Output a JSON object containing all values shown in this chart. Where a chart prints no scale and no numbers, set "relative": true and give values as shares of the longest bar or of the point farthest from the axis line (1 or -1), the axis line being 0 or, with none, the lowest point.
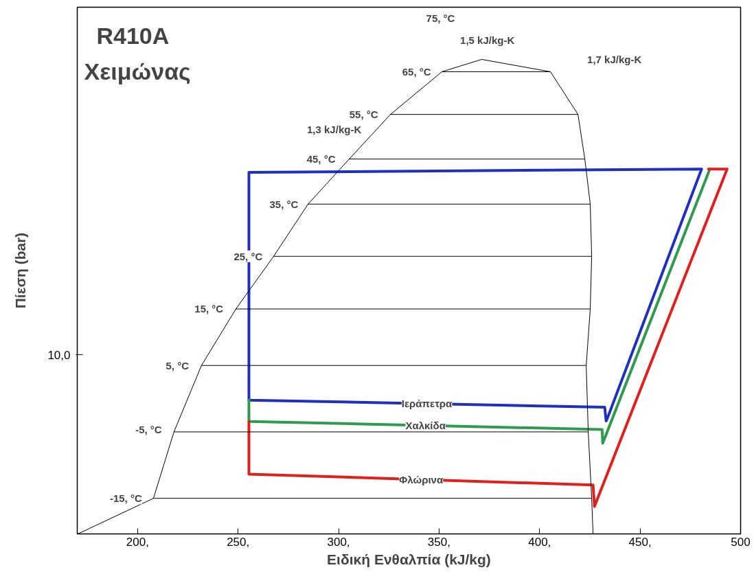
{
  "chart_data": {
    "type": "line",
    "title": "R410A",
    "subtitle": "Χειμώνας",
    "xlabel": "Ειδική Ενθαλπία (kJ/kg)",
    "ylabel": "Πίεση (bar)",
    "relative": true,
    "grid": false,
    "marker": "none",
    "line_style": "solid",
    "xlim": [
      170,
      500
    ],
    "xticks": [
      {
        "value": 200,
        "label": "200,"
      },
      {
        "value": 250,
        "label": "250,"
      },
      {
        "value": 300,
        "label": "300,"
      },
      {
        "value": 350,
        "label": "350,"
      },
      {
        "value": 400,
        "label": "400,"
      },
      {
        "value": 450,
        "label": "450,"
      },
      500
    ],
    "series": [
      {
        "name": "Ιεράπετρα",
        "color": "#1f2fbf",
        "x": [
          433.4,
          480.6,
          255.4,
          255.4,
          432.4,
          433.1
        ],
        "values": [
          0.24,
          0.769,
          0.762,
          0.282,
          0.267,
          0.238
        ]
      },
      {
        "name": "Χαλκίδα",
        "color": "#2e9b4f",
        "x": [
          255.4,
          255.4,
          431.1,
          431.4,
          484.7
        ],
        "values": [
          0.282,
          0.237,
          0.22,
          0.191,
          0.769
        ]
      },
      {
        "name": "Φλώρινα",
        "color": "#e0201c",
        "x": [
          255.4,
          255.4,
          426.6,
          427.3,
          493.3,
          484.0
        ],
        "values": [
          0.237,
          0.126,
          0.103,
          0.058,
          0.769,
          0.769
        ]
      },
      {
        "color": "#000000",
        "x": [
          170.3,
          207.9,
          218.1,
          231.8,
          248.9,
          267.7,
          284.8,
          305.3,
          325.8,
          351.4,
          371.2,
          405.4,
          419.1,
          422.5,
          425.2,
          425.9,
          425.2,
          423.2,
          424.2,
          425.9,
          426.6
        ],
        "values": [
          0,
          0.075,
          0.215,
          0.355,
          0.474,
          0.585,
          0.695,
          0.79,
          0.884,
          0.974,
          1.0,
          0.974,
          0.884,
          0.79,
          0.695,
          0.585,
          0.474,
          0.355,
          0.215,
          0.075,
          0
        ]
      },
      {
        "color": "#000000",
        "x": [
          207.9,
          425.9
        ],
        "values": [
          0.075,
          0.075
        ]
      },
      {
        "color": "#000000",
        "x": [
          218.1,
          424.2
        ],
        "values": [
          0.215,
          0.215
        ]
      },
      {
        "color": "#000000",
        "x": [
          231.8,
          423.2
        ],
        "values": [
          0.355,
          0.355
        ]
      },
      {
        "color": "#000000",
        "x": [
          248.9,
          425.2
        ],
        "values": [
          0.474,
          0.474
        ]
      },
      {
        "color": "#000000",
        "x": [
          267.7,
          425.9
        ],
        "values": [
          0.585,
          0.585
        ]
      },
      {
        "color": "#000000",
        "x": [
          284.8,
          425.2
        ],
        "values": [
          0.695,
          0.695
        ]
      },
      {
        "color": "#000000",
        "x": [
          305.3,
          422.5
        ],
        "values": [
          0.79,
          0.79
        ]
      },
      {
        "color": "#000000",
        "x": [
          325.8,
          419.1
        ],
        "values": [
          0.884,
          0.884
        ]
      },
      {
        "color": "#000000",
        "x": [
          351.4,
          405.4
        ],
        "values": [
          0.974,
          0.974
        ]
      }
    ],
    "annotations": [
      "-15, °C",
      {
        "text": "-5, °C",
        "x": 205.5,
        "y": 0.22
      },
      {
        "text": "5, °C",
        "x": 219.8,
        "y": 0.355
      },
      {
        "text": "15, °C",
        "x": 235.5,
        "y": 0.474
      },
      {
        "text": "25, °C",
        "x": 255.0,
        "y": 0.585
      },
      {
        "text": "35, °C",
        "x": 272.8,
        "y": 0.695
      },
      {
        "text": "45, °C",
        "x": 291.3,
        "y": 0.79
      },
      {
        "text": "55, °C",
        "x": 312.5,
        "y": 0.884
      },
      {
        "text": "65, °C",
        "x": 338.8,
        "y": 0.974
      },
      "75, °C",
      "1,3 kJ/kg-K",
      "1,5 kJ/kg-K",
      "1,7 kJ/kg-K",
      "10,0"
    ]
  }
}
